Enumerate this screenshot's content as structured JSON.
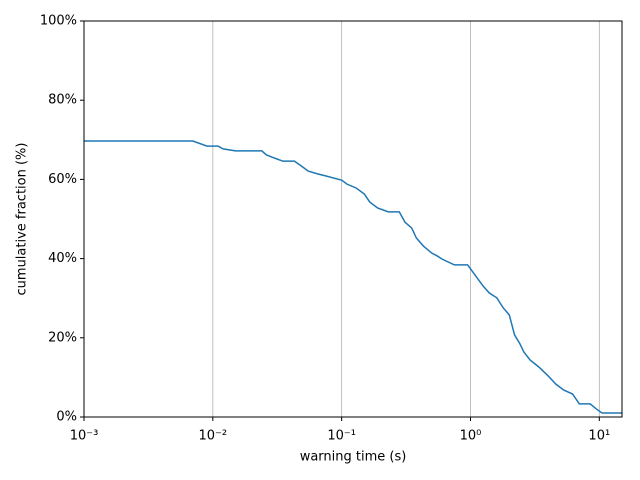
{
  "chart_data": {
    "type": "line",
    "xlabel": "warning time (s)",
    "ylabel": "cumulative fraction (%)",
    "xscale": "log",
    "grid": "x",
    "xlim": [
      0.001,
      15
    ],
    "ylim": [
      0,
      100
    ],
    "xticks": [
      {
        "value": 0.001,
        "label": "10⁻³"
      },
      {
        "value": 0.01,
        "label": "10⁻²"
      },
      {
        "value": 0.1,
        "label": "10⁻¹"
      },
      {
        "value": 1,
        "label": "10⁰"
      },
      {
        "value": 10,
        "label": "10¹"
      }
    ],
    "yticks": [
      {
        "value": 0,
        "label": "0%"
      },
      {
        "value": 20,
        "label": "20%"
      },
      {
        "value": 40,
        "label": "40%"
      },
      {
        "value": 60,
        "label": "60%"
      },
      {
        "value": 80,
        "label": "80%"
      },
      {
        "value": 100,
        "label": "100%"
      }
    ],
    "series": [
      {
        "color": "#1f77b4",
        "x": [
          0.001,
          0.007,
          0.009,
          0.011,
          0.012,
          0.015,
          0.024,
          0.026,
          0.03,
          0.035,
          0.043,
          0.05,
          0.055,
          0.065,
          0.075,
          0.1,
          0.11,
          0.13,
          0.15,
          0.165,
          0.19,
          0.23,
          0.28,
          0.31,
          0.35,
          0.38,
          0.43,
          0.5,
          0.55,
          0.6,
          0.75,
          0.95,
          1.1,
          1.25,
          1.4,
          1.6,
          1.8,
          2.0,
          2.2,
          2.4,
          2.6,
          2.9,
          3.4,
          4.0,
          4.6,
          5.3,
          6.2,
          7.0,
          8.5,
          9.5,
          10.5,
          15
        ],
        "values": [
          69.7,
          69.7,
          68.4,
          68.4,
          67.7,
          67.2,
          67.2,
          66.2,
          65.4,
          64.6,
          64.6,
          63.1,
          62.1,
          61.4,
          60.9,
          59.8,
          58.8,
          57.8,
          56.3,
          54.3,
          52.8,
          51.8,
          51.8,
          49.2,
          47.7,
          45.2,
          43.2,
          41.4,
          40.7,
          39.9,
          38.4,
          38.4,
          35.6,
          33.1,
          31.3,
          30.1,
          27.5,
          25.8,
          20.7,
          18.7,
          16.4,
          14.4,
          12.6,
          10.4,
          8.3,
          6.8,
          5.8,
          3.3,
          3.3,
          2.0,
          1.0,
          1.0
        ]
      }
    ]
  }
}
